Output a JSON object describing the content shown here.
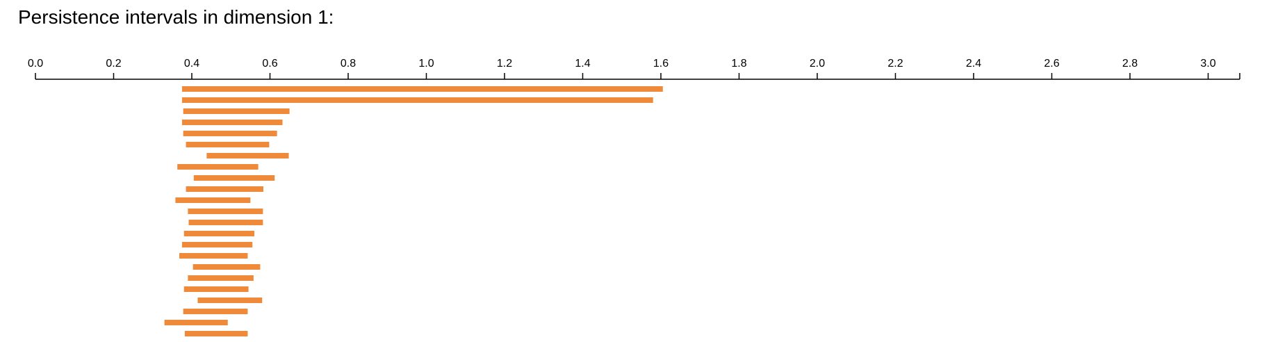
{
  "title": "Persistence intervals in dimension 1:",
  "chart_data": {
    "type": "bar",
    "orientation": "horizontal-intervals",
    "title": "Persistence intervals in dimension 1:",
    "xlabel": "",
    "ylabel": "",
    "xlim": [
      0.0,
      3.08
    ],
    "axis_position": "top",
    "xticks": [
      0.0,
      0.2,
      0.4,
      0.6,
      0.8,
      1.0,
      1.2,
      1.4,
      1.6,
      1.8,
      2.0,
      2.2,
      2.4,
      2.6,
      2.8,
      3.0
    ],
    "xtick_labels": [
      "0.0",
      "0.2",
      "0.4",
      "0.6",
      "0.8",
      "1.0",
      "1.2",
      "1.4",
      "1.6",
      "1.8",
      "2.0",
      "2.2",
      "2.4",
      "2.6",
      "2.8",
      "3.0"
    ],
    "grid": false,
    "legend": false,
    "color": "#ee8a3a",
    "intervals": [
      {
        "birth": 0.375,
        "death": 1.605
      },
      {
        "birth": 0.375,
        "death": 1.58
      },
      {
        "birth": 0.378,
        "death": 0.65
      },
      {
        "birth": 0.375,
        "death": 0.632
      },
      {
        "birth": 0.378,
        "death": 0.618
      },
      {
        "birth": 0.385,
        "death": 0.598
      },
      {
        "birth": 0.438,
        "death": 0.648
      },
      {
        "birth": 0.363,
        "death": 0.57
      },
      {
        "birth": 0.405,
        "death": 0.612
      },
      {
        "birth": 0.385,
        "death": 0.583
      },
      {
        "birth": 0.358,
        "death": 0.55
      },
      {
        "birth": 0.39,
        "death": 0.582
      },
      {
        "birth": 0.392,
        "death": 0.582
      },
      {
        "birth": 0.38,
        "death": 0.56
      },
      {
        "birth": 0.375,
        "death": 0.555
      },
      {
        "birth": 0.368,
        "death": 0.543
      },
      {
        "birth": 0.403,
        "death": 0.575
      },
      {
        "birth": 0.39,
        "death": 0.558
      },
      {
        "birth": 0.38,
        "death": 0.545
      },
      {
        "birth": 0.415,
        "death": 0.58
      },
      {
        "birth": 0.378,
        "death": 0.543
      },
      {
        "birth": 0.33,
        "death": 0.492
      },
      {
        "birth": 0.382,
        "death": 0.543
      }
    ]
  }
}
